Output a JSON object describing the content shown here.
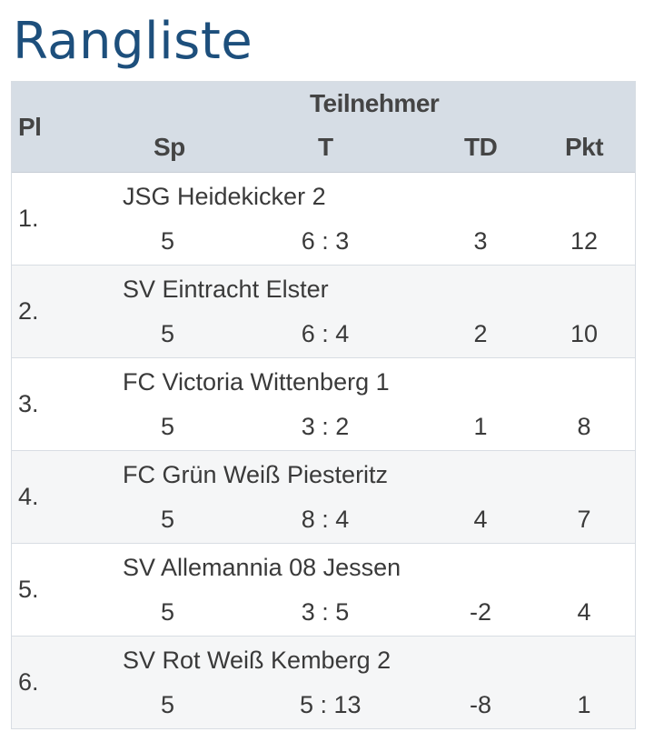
{
  "page": {
    "title": "Rangliste"
  },
  "table": {
    "headers": {
      "pl": "Pl",
      "teilnehmer": "Teilnehmer",
      "sp": "Sp",
      "t": "T",
      "td": "TD",
      "pkt": "Pkt"
    },
    "rows": [
      {
        "pl": "1.",
        "name": "JSG Heidekicker 2",
        "sp": "5",
        "t": "6 : 3",
        "td": "3",
        "pkt": "12"
      },
      {
        "pl": "2.",
        "name": "SV Eintracht Elster",
        "sp": "5",
        "t": "6 : 4",
        "td": "2",
        "pkt": "10"
      },
      {
        "pl": "3.",
        "name": "FC Victoria Wittenberg 1",
        "sp": "5",
        "t": "3 : 2",
        "td": "1",
        "pkt": "8"
      },
      {
        "pl": "4.",
        "name": "FC Grün Weiß Piesteritz",
        "sp": "5",
        "t": "8 : 4",
        "td": "4",
        "pkt": "7"
      },
      {
        "pl": "5.",
        "name": "SV Allemannia 08 Jessen",
        "sp": "5",
        "t": "3 : 5",
        "td": "-2",
        "pkt": "4"
      },
      {
        "pl": "6.",
        "name": "SV Rot Weiß Kemberg 2",
        "sp": "5",
        "t": "5 : 13",
        "td": "-8",
        "pkt": "1"
      }
    ]
  },
  "colors": {
    "title": "#1d4f7c",
    "header_bg": "#d6dde5",
    "row_alt_bg": "#f5f6f7",
    "text": "#3a3a3a"
  }
}
